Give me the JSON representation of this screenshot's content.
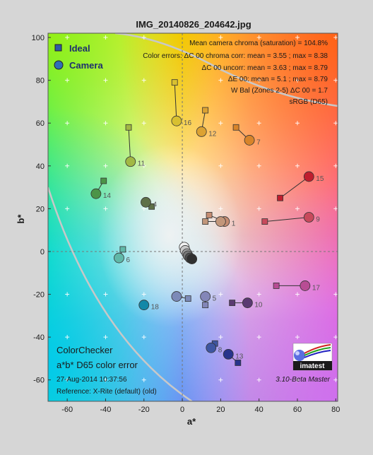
{
  "chart_data": {
    "type": "scatter",
    "title": "IMG_20140826_204642.jpg",
    "xlabel": "a*",
    "ylabel": "b*",
    "xlim": [
      -70,
      81
    ],
    "ylim": [
      -70,
      102
    ],
    "xticks": [
      -60,
      -40,
      -20,
      0,
      20,
      40,
      60,
      80
    ],
    "yticks": [
      -60,
      -40,
      -20,
      0,
      20,
      40,
      60,
      80,
      100
    ],
    "grid": true,
    "legend_position": "top-left",
    "legend": [
      {
        "name": "Ideal",
        "marker": "square",
        "color": "#2f5aa8"
      },
      {
        "name": "Camera",
        "marker": "circle",
        "color": "#2f6fb8"
      }
    ],
    "stats": [
      "Mean camera chroma (saturation) = 104.8%",
      "Color errors: ΔC 00 chroma corr:  mean = 3.55 ;  max = 8.38",
      "ΔC 00 uncorr:  mean = 3.63 ;  max = 8.79",
      "ΔE 00:  mean = 5.1 ;  max = 8.79",
      "W Bal (Zones 2-5) ΔC 00 = 1.7",
      "sRGB (D65)"
    ],
    "info": {
      "line1": "ColorChecker",
      "line2": "a*b* D65 color error",
      "line3": "27-Aug-2014 10:37:56",
      "line4": "Reference: X-Rite (default) (old)",
      "version": "3.10-Beta  Master",
      "logo_text": "imatest"
    },
    "patches": [
      {
        "n": "1",
        "ideal": [
          14,
          17
        ],
        "camera": [
          22,
          14
        ],
        "color": "#c58c72"
      },
      {
        "n": "",
        "ideal": [
          12,
          14
        ],
        "camera": [
          20,
          14
        ],
        "color": "#c2967a"
      },
      {
        "n": "4",
        "ideal": [
          -16,
          21
        ],
        "camera": [
          -19,
          23
        ],
        "color": "#5f7048"
      },
      {
        "n": "5",
        "ideal": [
          12,
          -25
        ],
        "camera": [
          12,
          -21
        ],
        "color": "#8386b8"
      },
      {
        "n": "6",
        "ideal": [
          -31,
          1
        ],
        "camera": [
          -33,
          -3
        ],
        "color": "#60b8a8"
      },
      {
        "n": "7",
        "ideal": [
          28,
          58
        ],
        "camera": [
          35,
          52
        ],
        "color": "#d8842a"
      },
      {
        "n": "8",
        "ideal": [
          17,
          -43
        ],
        "camera": [
          15,
          -45
        ],
        "color": "#3e56a2"
      },
      {
        "n": "9",
        "ideal": [
          43,
          14
        ],
        "camera": [
          66,
          16
        ],
        "color": "#c84a5c"
      },
      {
        "n": "10",
        "ideal": [
          26,
          -24
        ],
        "camera": [
          34,
          -24
        ],
        "color": "#5a3a72"
      },
      {
        "n": "11",
        "ideal": [
          -28,
          58
        ],
        "camera": [
          -27,
          42
        ],
        "color": "#a2b844"
      },
      {
        "n": "12",
        "ideal": [
          12,
          66
        ],
        "camera": [
          10,
          56
        ],
        "color": "#dca232"
      },
      {
        "n": "13",
        "ideal": [
          29,
          -52
        ],
        "camera": [
          24,
          -48
        ],
        "color": "#28348c"
      },
      {
        "n": "14",
        "ideal": [
          -41,
          33
        ],
        "camera": [
          -45,
          27
        ],
        "color": "#4c9448"
      },
      {
        "n": "15",
        "ideal": [
          51,
          25
        ],
        "camera": [
          66,
          35
        ],
        "color": "#c01e2e"
      },
      {
        "n": "16",
        "ideal": [
          -4,
          79
        ],
        "camera": [
          -3,
          61
        ],
        "color": "#d8c030"
      },
      {
        "n": "17",
        "ideal": [
          49,
          -16
        ],
        "camera": [
          64,
          -16
        ],
        "color": "#b84c94"
      },
      {
        "n": "18",
        "ideal": [
          -20,
          -25
        ],
        "camera": [
          -20,
          -25
        ],
        "color": "#1288a8"
      },
      {
        "n": "",
        "ideal": [
          3,
          -22
        ],
        "camera": [
          -3,
          -21
        ],
        "color": "#7c8ab8"
      }
    ],
    "neutrals": [
      {
        "camera": [
          1,
          2
        ],
        "color": "#f2f2f2"
      },
      {
        "camera": [
          1.5,
          0.5
        ],
        "color": "#c8c8c8"
      },
      {
        "camera": [
          2.5,
          -1
        ],
        "color": "#a0a0a0"
      },
      {
        "camera": [
          3,
          -2
        ],
        "color": "#787878"
      },
      {
        "camera": [
          4,
          -3
        ],
        "color": "#505050"
      },
      {
        "camera": [
          5,
          -3.5
        ],
        "color": "#303030"
      }
    ]
  }
}
